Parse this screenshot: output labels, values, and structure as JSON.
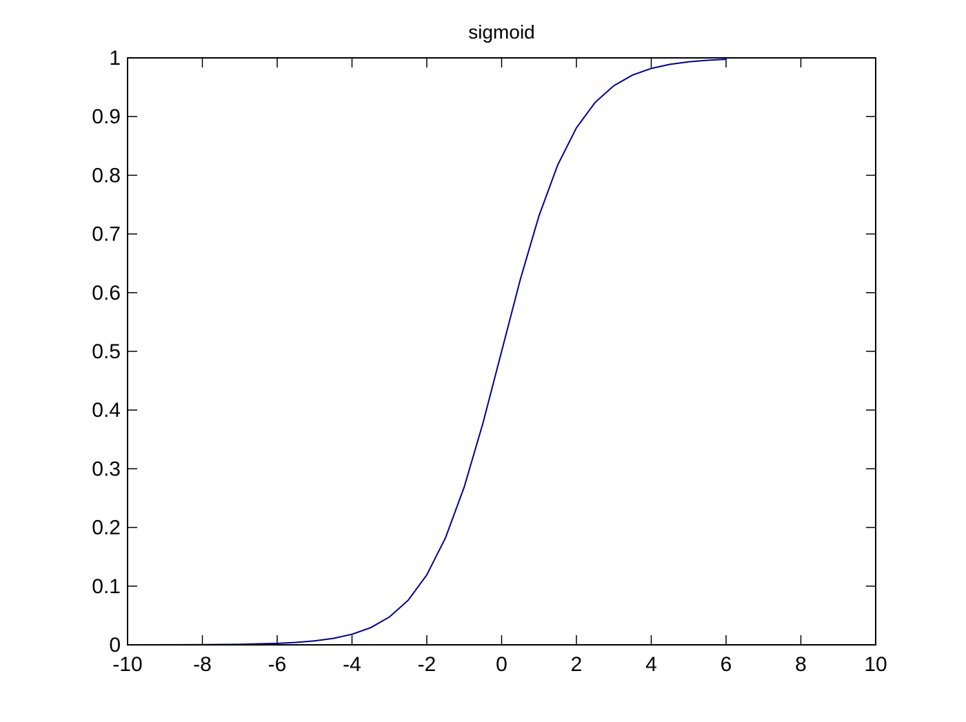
{
  "colors": {
    "background": "#ffffff",
    "axes": "#000000",
    "line": "#00008b"
  },
  "chart_data": {
    "type": "line",
    "title": "sigmoid",
    "xlabel": "",
    "ylabel": "",
    "xlim": [
      -10,
      10
    ],
    "ylim": [
      0,
      1
    ],
    "grid": false,
    "x_ticks": [
      "-10",
      "-8",
      "-6",
      "-4",
      "-2",
      "0",
      "2",
      "4",
      "6",
      "8",
      "10"
    ],
    "y_ticks": [
      "0",
      "0.1",
      "0.2",
      "0.3",
      "0.4",
      "0.5",
      "0.6",
      "0.7",
      "0.8",
      "0.9",
      "1"
    ],
    "series": [
      {
        "x": [
          -10,
          -9,
          -8,
          -7,
          -6,
          -5.5,
          -5,
          -4.5,
          -4,
          -3.5,
          -3,
          -2.5,
          -2,
          -1.5,
          -1,
          -0.5,
          0,
          0.5,
          1,
          1.5,
          2,
          2.5,
          3,
          3.5,
          4,
          4.5,
          5,
          5.5,
          6
        ],
        "y": [
          0.0,
          0.0001,
          0.0003,
          0.0009,
          0.0025,
          0.0041,
          0.0067,
          0.011,
          0.018,
          0.0293,
          0.0474,
          0.0759,
          0.1192,
          0.1824,
          0.2689,
          0.3775,
          0.5,
          0.6225,
          0.7311,
          0.8176,
          0.8808,
          0.9241,
          0.9526,
          0.9707,
          0.982,
          0.989,
          0.9933,
          0.9959,
          0.9975
        ]
      }
    ]
  }
}
